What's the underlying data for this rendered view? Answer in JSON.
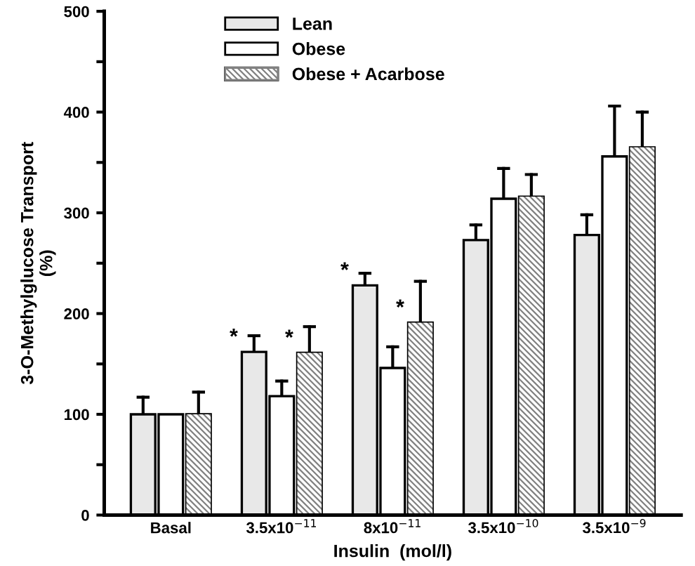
{
  "chart_data": {
    "type": "bar",
    "xlabel": "Insulin  (mol/l)",
    "ylabel": "3-O-Methylglucose Transport\n(%)",
    "categories": [
      "Basal",
      "3.5x10$^{−11}$",
      "8x10$^{−11}$",
      "3.5x10$^{−10}$",
      "3.5x10$^{−9}$"
    ],
    "series": [
      {
        "name": "Lean",
        "color": "#e8e8e8",
        "values": [
          100,
          162,
          228,
          273,
          278
        ],
        "errors": [
          [
            100,
            117
          ],
          [
            162,
            178
          ],
          [
            228,
            240
          ],
          [
            273,
            288
          ],
          [
            278,
            298
          ]
        ]
      },
      {
        "name": "Obese",
        "color": "#ffffff",
        "values": [
          100,
          118,
          146,
          314,
          356
        ],
        "errors": [
          null,
          [
            118,
            133
          ],
          [
            146,
            167
          ],
          [
            314,
            344
          ],
          [
            356,
            406
          ]
        ]
      },
      {
        "name": "Obese + Acarbose",
        "color": "#808080",
        "values": [
          100,
          161,
          191,
          316,
          365
        ],
        "errors": [
          [
            100,
            122
          ],
          [
            161,
            187
          ],
          [
            191,
            232
          ],
          [
            316,
            338
          ],
          [
            365,
            400
          ]
        ]
      }
    ],
    "ylim": [
      0,
      500
    ],
    "yticks": [
      0,
      {
        "value": 50,
        "label": null
      },
      100,
      {
        "value": 150,
        "label": null
      },
      200,
      {
        "value": 250,
        "label": null
      },
      300,
      {
        "value": 350,
        "label": null
      },
      400,
      {
        "value": 450,
        "label": null
      },
      500
    ],
    "annotations": [
      "*",
      "*",
      "*",
      "*"
    ],
    "legend": "top",
    "grid": false
  }
}
